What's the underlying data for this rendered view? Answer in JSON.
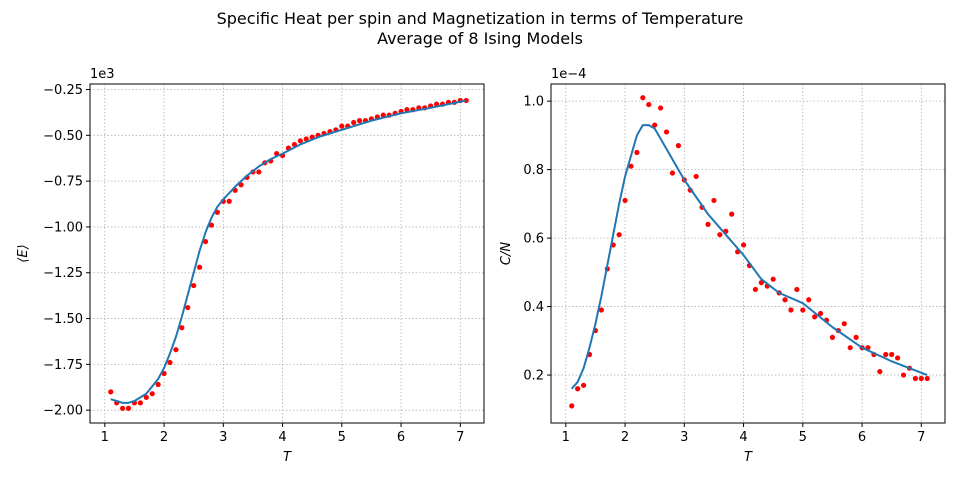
{
  "figure": {
    "title_line1": "Specific Heat per spin and Magnetization in terms of Temperature",
    "title_line2": "Average of 8 Ising Models"
  },
  "chart_data": [
    {
      "type": "scatter",
      "xlabel": "T",
      "ylabel": "⟨E⟩",
      "offset_label": "1e3",
      "xlim": [
        0.75,
        7.4
      ],
      "ylim": [
        -2.07,
        -0.22
      ],
      "xticks": [
        1,
        2,
        3,
        4,
        5,
        6,
        7
      ],
      "xtick_labels": [
        "1",
        "2",
        "3",
        "4",
        "5",
        "6",
        "7"
      ],
      "yticks": [
        -2.0,
        -1.75,
        -1.5,
        -1.25,
        -1.0,
        -0.75,
        -0.5,
        -0.25
      ],
      "ytick_labels": [
        "−2.00",
        "−1.75",
        "−1.50",
        "−1.25",
        "−1.00",
        "−0.75",
        "−0.50",
        "−0.25"
      ],
      "grid": true,
      "series": [
        {
          "kind": "points",
          "color": "#ff0000",
          "x": [
            1.1,
            1.2,
            1.3,
            1.4,
            1.5,
            1.6,
            1.7,
            1.8,
            1.9,
            2.0,
            2.1,
            2.2,
            2.3,
            2.4,
            2.5,
            2.6,
            2.7,
            2.8,
            2.9,
            3.0,
            3.1,
            3.2,
            3.3,
            3.4,
            3.5,
            3.6,
            3.7,
            3.8,
            3.9,
            4.0,
            4.1,
            4.2,
            4.3,
            4.4,
            4.5,
            4.6,
            4.7,
            4.8,
            4.9,
            5.0,
            5.1,
            5.2,
            5.3,
            5.4,
            5.5,
            5.6,
            5.7,
            5.8,
            5.9,
            6.0,
            6.1,
            6.2,
            6.3,
            6.4,
            6.5,
            6.6,
            6.7,
            6.8,
            6.9,
            7.0,
            7.1
          ],
          "y": [
            -1.9,
            -1.96,
            -1.99,
            -1.99,
            -1.96,
            -1.96,
            -1.93,
            -1.91,
            -1.86,
            -1.8,
            -1.74,
            -1.67,
            -1.55,
            -1.44,
            -1.32,
            -1.22,
            -1.08,
            -0.99,
            -0.92,
            -0.86,
            -0.86,
            -0.8,
            -0.77,
            -0.73,
            -0.7,
            -0.7,
            -0.65,
            -0.64,
            -0.6,
            -0.61,
            -0.57,
            -0.55,
            -0.53,
            -0.52,
            -0.51,
            -0.5,
            -0.49,
            -0.48,
            -0.47,
            -0.45,
            -0.45,
            -0.43,
            -0.42,
            -0.42,
            -0.41,
            -0.4,
            -0.39,
            -0.39,
            -0.38,
            -0.37,
            -0.36,
            -0.36,
            -0.35,
            -0.35,
            -0.34,
            -0.33,
            -0.33,
            -0.32,
            -0.32,
            -0.31,
            -0.31
          ]
        },
        {
          "kind": "line",
          "color": "#1f77b4",
          "x": [
            1.1,
            1.2,
            1.3,
            1.4,
            1.5,
            1.6,
            1.7,
            1.8,
            1.9,
            2.0,
            2.1,
            2.2,
            2.3,
            2.4,
            2.5,
            2.6,
            2.7,
            2.8,
            2.9,
            3.0,
            3.2,
            3.4,
            3.6,
            3.8,
            4.0,
            4.3,
            4.6,
            5.0,
            5.5,
            6.0,
            6.5,
            7.1
          ],
          "y": [
            -1.94,
            -1.95,
            -1.96,
            -1.96,
            -1.95,
            -1.93,
            -1.91,
            -1.87,
            -1.83,
            -1.77,
            -1.69,
            -1.6,
            -1.49,
            -1.37,
            -1.25,
            -1.13,
            -1.03,
            -0.95,
            -0.89,
            -0.85,
            -0.78,
            -0.72,
            -0.67,
            -0.63,
            -0.6,
            -0.55,
            -0.51,
            -0.47,
            -0.42,
            -0.38,
            -0.35,
            -0.31
          ]
        }
      ]
    },
    {
      "type": "scatter",
      "xlabel": "T",
      "ylabel": "C/N",
      "offset_label": "1e−4",
      "xlim": [
        0.75,
        7.4
      ],
      "ylim": [
        0.06,
        1.05
      ],
      "xticks": [
        1,
        2,
        3,
        4,
        5,
        6,
        7
      ],
      "xtick_labels": [
        "1",
        "2",
        "3",
        "4",
        "5",
        "6",
        "7"
      ],
      "yticks": [
        0.2,
        0.4,
        0.6,
        0.8,
        1.0
      ],
      "ytick_labels": [
        "0.2",
        "0.4",
        "0.6",
        "0.8",
        "1.0"
      ],
      "grid": true,
      "series": [
        {
          "kind": "points",
          "color": "#ff0000",
          "x": [
            1.1,
            1.2,
            1.3,
            1.4,
            1.5,
            1.6,
            1.7,
            1.8,
            1.9,
            2.0,
            2.1,
            2.2,
            2.3,
            2.4,
            2.5,
            2.6,
            2.7,
            2.8,
            2.9,
            3.0,
            3.1,
            3.2,
            3.3,
            3.4,
            3.5,
            3.6,
            3.7,
            3.8,
            3.9,
            4.0,
            4.1,
            4.2,
            4.3,
            4.4,
            4.5,
            4.6,
            4.7,
            4.8,
            4.9,
            5.0,
            5.1,
            5.2,
            5.3,
            5.4,
            5.5,
            5.6,
            5.7,
            5.8,
            5.9,
            6.0,
            6.1,
            6.2,
            6.3,
            6.4,
            6.5,
            6.6,
            6.7,
            6.8,
            6.9,
            7.0,
            7.1
          ],
          "y": [
            0.11,
            0.16,
            0.17,
            0.26,
            0.33,
            0.39,
            0.51,
            0.58,
            0.61,
            0.71,
            0.81,
            0.85,
            1.01,
            0.99,
            0.93,
            0.98,
            0.91,
            0.79,
            0.87,
            0.77,
            0.74,
            0.78,
            0.69,
            0.64,
            0.71,
            0.61,
            0.62,
            0.67,
            0.56,
            0.58,
            0.52,
            0.45,
            0.47,
            0.46,
            0.48,
            0.44,
            0.42,
            0.39,
            0.45,
            0.39,
            0.42,
            0.37,
            0.38,
            0.36,
            0.31,
            0.33,
            0.35,
            0.28,
            0.31,
            0.28,
            0.28,
            0.26,
            0.21,
            0.26,
            0.26,
            0.25,
            0.2,
            0.22,
            0.19,
            0.19,
            0.19
          ]
        },
        {
          "kind": "line",
          "color": "#1f77b4",
          "x": [
            1.1,
            1.2,
            1.3,
            1.4,
            1.5,
            1.6,
            1.7,
            1.8,
            1.9,
            2.0,
            2.1,
            2.2,
            2.3,
            2.4,
            2.5,
            2.6,
            2.7,
            2.8,
            2.9,
            3.0,
            3.2,
            3.4,
            3.6,
            3.8,
            4.0,
            4.3,
            4.6,
            5.0,
            5.5,
            6.0,
            6.5,
            7.1
          ],
          "y": [
            0.16,
            0.18,
            0.22,
            0.28,
            0.35,
            0.43,
            0.52,
            0.61,
            0.7,
            0.78,
            0.84,
            0.9,
            0.93,
            0.93,
            0.92,
            0.89,
            0.86,
            0.83,
            0.8,
            0.77,
            0.72,
            0.67,
            0.63,
            0.59,
            0.55,
            0.48,
            0.44,
            0.41,
            0.34,
            0.28,
            0.24,
            0.2
          ]
        }
      ]
    }
  ]
}
